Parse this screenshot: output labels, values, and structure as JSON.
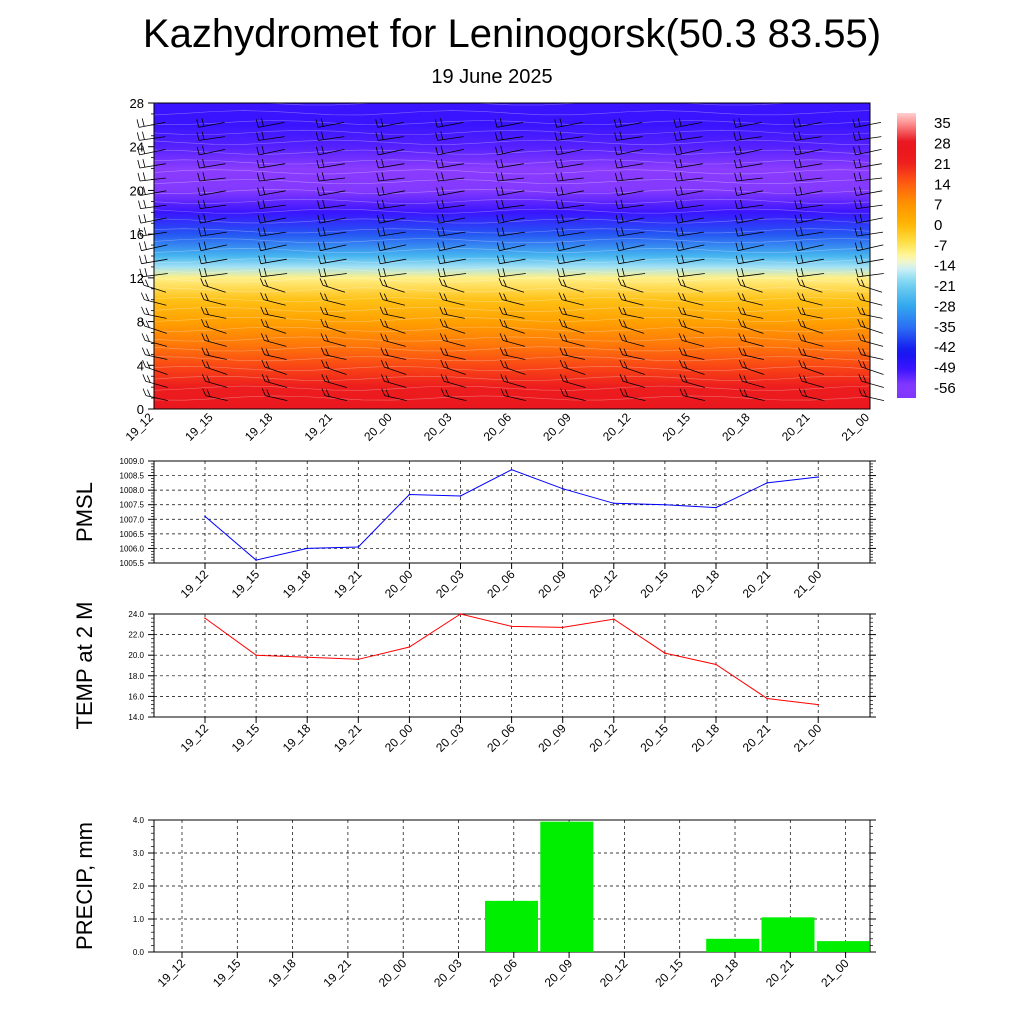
{
  "header": {
    "title": "Kazhydromet for Leninogorsk(50.3 83.55)",
    "date": "19 June 2025"
  },
  "time_labels": [
    "19_12",
    "19_15",
    "19_18",
    "19_21",
    "20_00",
    "20_03",
    "20_06",
    "20_09",
    "20_12",
    "20_15",
    "20_18",
    "20_21",
    "21_00"
  ],
  "chart_data": [
    {
      "type": "heatmap",
      "title": "",
      "x": [
        "19_12",
        "19_15",
        "19_18",
        "19_21",
        "20_00",
        "20_03",
        "20_06",
        "20_09",
        "20_12",
        "20_15",
        "20_18",
        "20_21",
        "21_00"
      ],
      "yticks": [
        0,
        4,
        8,
        12,
        16,
        20,
        24,
        28
      ],
      "ylim": [
        0,
        28
      ],
      "colorbar_ticks": [
        35,
        28,
        21,
        14,
        7,
        0,
        -7,
        -14,
        -21,
        -28,
        -35,
        -42,
        -49,
        -56
      ],
      "colorbar_range": [
        -60,
        38
      ],
      "temperature_profile": [
        {
          "level": 0,
          "value": 26
        },
        {
          "level": 2,
          "value": 22
        },
        {
          "level": 4,
          "value": 16
        },
        {
          "level": 6,
          "value": 10
        },
        {
          "level": 8,
          "value": 4
        },
        {
          "level": 10,
          "value": -2
        },
        {
          "level": 12,
          "value": -10
        },
        {
          "level": 13,
          "value": -18
        },
        {
          "level": 14,
          "value": -26
        },
        {
          "level": 16,
          "value": -38
        },
        {
          "level": 18,
          "value": -50
        },
        {
          "level": 20,
          "value": -58
        },
        {
          "level": 22,
          "value": -56
        },
        {
          "level": 24,
          "value": -52
        },
        {
          "level": 26,
          "value": -50
        },
        {
          "level": 28,
          "value": -50
        }
      ],
      "colors": {
        "red": "#e8141e",
        "orange": "#ff9a00",
        "yellow": "#fff176",
        "light_blue": "#aee6f5",
        "cyan": "#33a8ee",
        "blue": "#1010ee",
        "violet": "#8833ff"
      }
    },
    {
      "type": "line",
      "ylabel": "PMSL",
      "x": [
        "19_12",
        "19_15",
        "19_18",
        "19_21",
        "20_00",
        "20_03",
        "20_06",
        "20_09",
        "20_12",
        "20_15",
        "20_18",
        "20_21",
        "21_00"
      ],
      "values": [
        1007.1,
        1005.6,
        1006.0,
        1006.05,
        1007.85,
        1007.8,
        1008.7,
        1008.05,
        1007.55,
        1007.5,
        1007.4,
        1008.25,
        1008.45
      ],
      "ylim": [
        1005.5,
        1009.0
      ],
      "yticks": [
        "1005.5",
        "1006.0",
        "1006.5",
        "1007.0",
        "1007.5",
        "1008.0",
        "1008.5",
        "1009.0"
      ],
      "color": "#0000ff",
      "grid": true
    },
    {
      "type": "line",
      "ylabel": "TEMP at 2 M",
      "x": [
        "19_12",
        "19_15",
        "19_18",
        "19_21",
        "20_00",
        "20_03",
        "20_06",
        "20_09",
        "20_12",
        "20_15",
        "20_18",
        "20_21",
        "21_00"
      ],
      "values": [
        23.6,
        20.0,
        19.8,
        19.6,
        20.8,
        24.0,
        22.8,
        22.7,
        23.5,
        20.2,
        19.1,
        15.8,
        15.2
      ],
      "ylim": [
        14.0,
        24.0
      ],
      "yticks": [
        "14.0",
        "16.0",
        "18.0",
        "20.0",
        "22.0",
        "24.0"
      ],
      "color": "#ff0000",
      "grid": true
    },
    {
      "type": "bar",
      "ylabel": "PRECIP, mm",
      "categories": [
        "19_12",
        "19_15",
        "19_18",
        "19_21",
        "20_00",
        "20_03",
        "20_06",
        "20_09",
        "20_12",
        "20_15",
        "20_18",
        "20_21",
        "21_00"
      ],
      "values": [
        0,
        0,
        0,
        0,
        0,
        0,
        1.55,
        3.95,
        0,
        0,
        0.4,
        1.05,
        0.33
      ],
      "ylim": [
        0,
        4.0
      ],
      "yticks": [
        "0.0",
        "1.0",
        "2.0",
        "3.0",
        "4.0"
      ],
      "color": "#00ee00",
      "grid": true
    }
  ]
}
